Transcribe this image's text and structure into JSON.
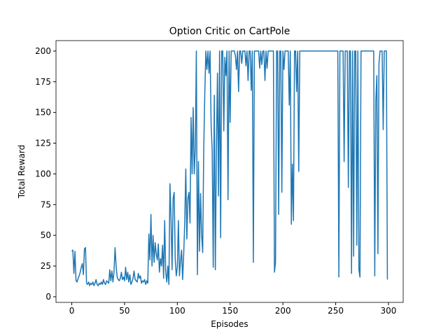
{
  "chart_data": {
    "type": "line",
    "title": "Option Critic on CartPole",
    "x_label": "Episodes",
    "y_label": "Total Reward",
    "x": [
      0,
      1,
      2,
      3,
      4,
      5,
      6,
      7,
      8,
      9,
      10,
      11,
      12,
      13,
      14,
      15,
      16,
      17,
      18,
      19,
      20,
      21,
      22,
      23,
      24,
      25,
      26,
      27,
      28,
      29,
      30,
      31,
      32,
      33,
      34,
      35,
      36,
      37,
      38,
      39,
      40,
      41,
      42,
      43,
      44,
      45,
      46,
      47,
      48,
      49,
      50,
      51,
      52,
      53,
      54,
      55,
      56,
      57,
      58,
      59,
      60,
      61,
      62,
      63,
      64,
      65,
      66,
      67,
      68,
      69,
      70,
      71,
      72,
      73,
      74,
      75,
      76,
      77,
      78,
      79,
      80,
      81,
      82,
      83,
      84,
      85,
      86,
      87,
      88,
      89,
      90,
      91,
      92,
      93,
      94,
      95,
      96,
      97,
      98,
      99,
      100,
      101,
      102,
      103,
      104,
      105,
      106,
      107,
      108,
      109,
      110,
      111,
      112,
      113,
      114,
      115,
      116,
      117,
      118,
      119,
      120,
      121,
      122,
      123,
      124,
      125,
      126,
      127,
      128,
      129,
      130,
      131,
      132,
      133,
      134,
      135,
      136,
      137,
      138,
      139,
      140,
      141,
      142,
      143,
      144,
      145,
      146,
      147,
      148,
      149,
      150,
      151,
      152,
      153,
      154,
      155,
      156,
      157,
      158,
      159,
      160,
      161,
      162,
      163,
      164,
      165,
      166,
      167,
      168,
      169,
      170,
      171,
      172,
      173,
      174,
      175,
      176,
      177,
      178,
      179,
      180,
      181,
      182,
      183,
      184,
      185,
      186,
      187,
      188,
      189,
      190,
      191,
      192,
      193,
      194,
      195,
      196,
      197,
      198,
      199,
      200,
      201,
      202,
      203,
      204,
      205,
      206,
      207,
      208,
      209,
      210,
      211,
      212,
      213,
      214,
      215,
      216,
      217,
      218,
      219,
      220,
      221,
      222,
      223,
      224,
      225,
      226,
      227,
      228,
      229,
      230,
      231,
      232,
      233,
      234,
      235,
      236,
      237,
      238,
      239,
      240,
      241,
      242,
      243,
      244,
      245,
      246,
      247,
      248,
      249,
      250,
      251,
      252,
      253,
      254,
      255,
      256,
      257,
      258,
      259,
      260,
      261,
      262,
      263,
      264,
      265,
      266,
      267,
      268,
      269,
      270,
      271,
      272,
      273,
      274,
      275,
      276,
      277,
      278,
      279,
      280,
      281,
      282,
      283,
      284,
      285,
      286,
      287,
      288,
      289,
      290,
      291,
      292,
      293,
      294,
      295,
      296,
      297,
      298,
      299
    ],
    "series": [
      {
        "color": "#1f77b4",
        "values": [
          37,
          38,
          19,
          37,
          13,
          12,
          15,
          17,
          20,
          24,
          27,
          18,
          39,
          40,
          11,
          10,
          12,
          9,
          11,
          10,
          12,
          9,
          11,
          14,
          10,
          9,
          11,
          10,
          12,
          10,
          14,
          11,
          10,
          13,
          12,
          11,
          22,
          13,
          21,
          12,
          20,
          40,
          25,
          16,
          14,
          13,
          15,
          20,
          14,
          16,
          13,
          24,
          14,
          20,
          12,
          18,
          10,
          12,
          15,
          21,
          14,
          13,
          12,
          19,
          15,
          17,
          11,
          13,
          12,
          14,
          10,
          13,
          11,
          51,
          30,
          67,
          25,
          50,
          28,
          44,
          35,
          30,
          43,
          20,
          31,
          25,
          42,
          15,
          62,
          20,
          12,
          25,
          10,
          92,
          65,
          22,
          80,
          85,
          30,
          17,
          24,
          62,
          17,
          29,
          38,
          14,
          34,
          60,
          104,
          47,
          80,
          85,
          60,
          146,
          100,
          154,
          100,
          120,
          200,
          18,
          110,
          37,
          84,
          50,
          36,
          120,
          165,
          200,
          185,
          200,
          182,
          200,
          140,
          120,
          24,
          164,
          22,
          120,
          182,
          82,
          200,
          48,
          200,
          200,
          135,
          195,
          180,
          200,
          79,
          200,
          142,
          200,
          200,
          200,
          200,
          196,
          185,
          200,
          167,
          200,
          200,
          190,
          200,
          200,
          200,
          188,
          200,
          176,
          200,
          200,
          168,
          200,
          28,
          200,
          200,
          200,
          200,
          200,
          186,
          200,
          189,
          200,
          200,
          176,
          200,
          186,
          200,
          200,
          200,
          200,
          200,
          200,
          20,
          28,
          200,
          200,
          67,
          200,
          200,
          85,
          200,
          185,
          200,
          200,
          200,
          200,
          156,
          200,
          59,
          108,
          62,
          200,
          200,
          167,
          200,
          102,
          200,
          200,
          200,
          200,
          200,
          200,
          200,
          200,
          200,
          200,
          200,
          200,
          200,
          200,
          200,
          200,
          200,
          200,
          200,
          200,
          200,
          200,
          200,
          200,
          200,
          200,
          200,
          200,
          200,
          200,
          200,
          200,
          200,
          200,
          200,
          200,
          200,
          16,
          200,
          200,
          200,
          200,
          110,
          200,
          200,
          200,
          89,
          200,
          200,
          19,
          200,
          33,
          200,
          200,
          42,
          200,
          22,
          16,
          200,
          200,
          200,
          200,
          200,
          200,
          200,
          200,
          200,
          200,
          200,
          200,
          200,
          17,
          160,
          180,
          35,
          190,
          200,
          200,
          200,
          136,
          200,
          200,
          200,
          14
        ]
      }
    ],
    "xlim": [
      -14.95,
      313.95
    ],
    "xticks": [
      0,
      50,
      100,
      150,
      200,
      250,
      300
    ],
    "ylim": [
      -4.6,
      208.5
    ],
    "yticks": [
      0,
      25,
      50,
      75,
      100,
      125,
      150,
      175,
      200
    ]
  }
}
